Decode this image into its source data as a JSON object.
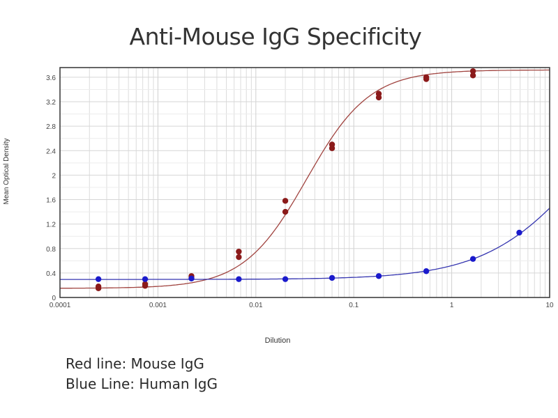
{
  "chart_data": {
    "type": "scatter",
    "title": "Anti-Mouse IgG Specificity",
    "xlabel": "Dilution",
    "ylabel": "Mean Optical Density",
    "xscale": "log",
    "xlim": [
      0.0001,
      10
    ],
    "ylim": [
      0,
      3.7
    ],
    "x_ticks": [
      0.0001,
      0.001,
      0.01,
      0.1,
      1,
      10
    ],
    "x_tick_labels": [
      "0.0001",
      "0.001",
      "0.01",
      "0.1",
      "1",
      "10"
    ],
    "y_ticks": [
      0,
      0.4,
      0.8,
      1.2,
      1.6,
      2,
      2.4,
      2.8,
      3.2,
      3.6
    ],
    "y_tick_labels": [
      "0",
      "0.4",
      "0.8",
      "1.2",
      "1.6",
      "2",
      "2.4",
      "2.8",
      "3.2",
      "3.6"
    ],
    "grid": true,
    "series": [
      {
        "name": "Mouse IgG",
        "color": "#8b1a1a",
        "line_color": "#a0433f",
        "fit": {
          "model": "4PL",
          "bottom": 0.15,
          "top": 3.72,
          "ec50": 0.033,
          "hill": 1.35
        },
        "points": [
          {
            "x": 0.000247,
            "y": 0.15
          },
          {
            "x": 0.000247,
            "y": 0.18
          },
          {
            "x": 0.00074,
            "y": 0.19
          },
          {
            "x": 0.00074,
            "y": 0.22
          },
          {
            "x": 0.0022,
            "y": 0.32
          },
          {
            "x": 0.0022,
            "y": 0.35
          },
          {
            "x": 0.0067,
            "y": 0.66
          },
          {
            "x": 0.0067,
            "y": 0.75
          },
          {
            "x": 0.02,
            "y": 1.4
          },
          {
            "x": 0.02,
            "y": 1.58
          },
          {
            "x": 0.06,
            "y": 2.44
          },
          {
            "x": 0.06,
            "y": 2.5
          },
          {
            "x": 0.18,
            "y": 3.27
          },
          {
            "x": 0.18,
            "y": 3.33
          },
          {
            "x": 0.55,
            "y": 3.57
          },
          {
            "x": 0.55,
            "y": 3.6
          },
          {
            "x": 1.65,
            "y": 3.63
          },
          {
            "x": 1.65,
            "y": 3.7
          }
        ]
      },
      {
        "name": "Human IgG",
        "color": "#1a1acc",
        "line_color": "#3535b0",
        "fit": {
          "model": "4PL",
          "bottom": 0.295,
          "top": 4.0,
          "ec50": 25,
          "hill": 0.85
        },
        "points": [
          {
            "x": 0.000247,
            "y": 0.3
          },
          {
            "x": 0.00074,
            "y": 0.3
          },
          {
            "x": 0.0022,
            "y": 0.31
          },
          {
            "x": 0.0067,
            "y": 0.3
          },
          {
            "x": 0.02,
            "y": 0.3
          },
          {
            "x": 0.06,
            "y": 0.32
          },
          {
            "x": 0.18,
            "y": 0.35
          },
          {
            "x": 0.55,
            "y": 0.43
          },
          {
            "x": 1.65,
            "y": 0.63
          },
          {
            "x": 4.9,
            "y": 1.06
          }
        ]
      }
    ]
  },
  "legend": {
    "line1": "Red line: Mouse IgG",
    "line2": "Blue Line: Human IgG"
  }
}
